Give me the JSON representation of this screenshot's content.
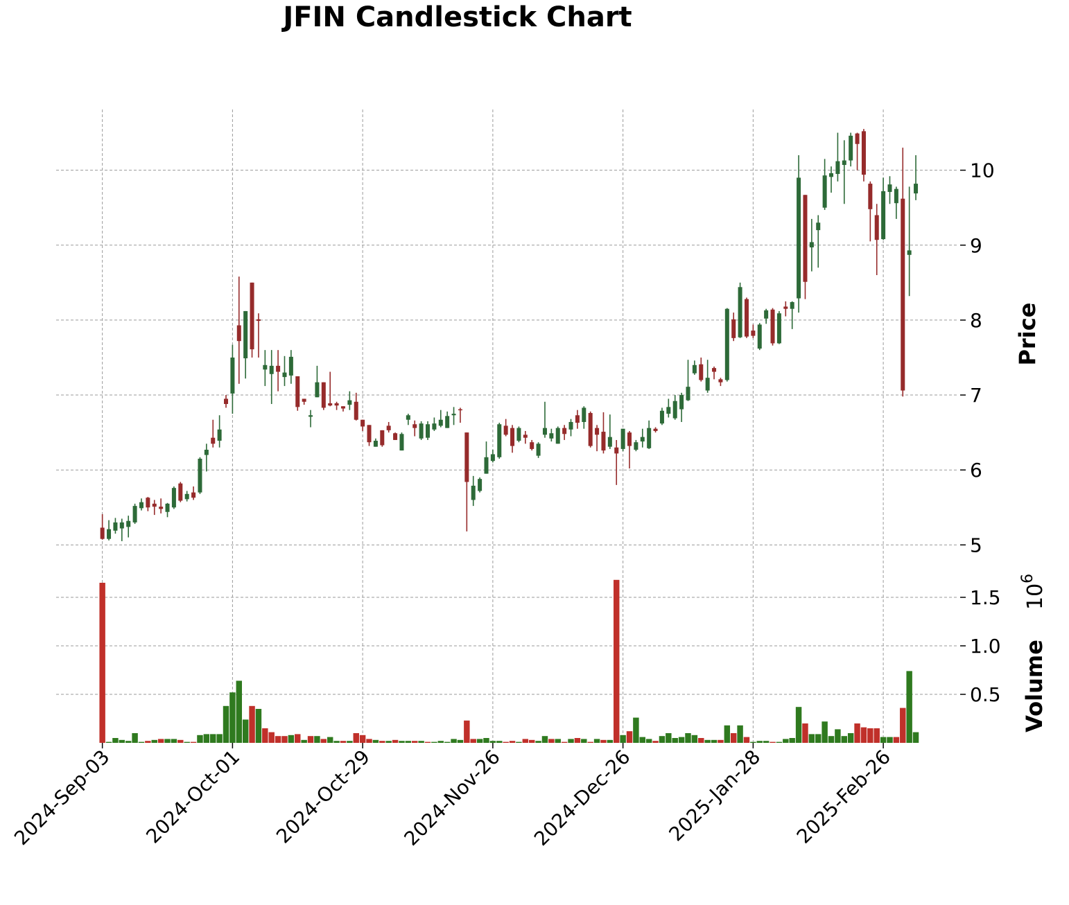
{
  "chart_data": {
    "type": "candlestick",
    "title": "JFIN Candlestick Chart",
    "y_label": "Price",
    "volume_label": "Volume",
    "volume_offset": {
      "base": "10",
      "exponent": "6"
    },
    "grid": true,
    "up_color": "#2d6a38",
    "down_color": "#962b2b",
    "volume_up_color": "#2f7a1f",
    "volume_down_color": "#c0302a",
    "ylim": [
      4.92,
      10.81
    ],
    "yticks": [
      5,
      6,
      7,
      8,
      9,
      10
    ],
    "volume_ylim": [
      0,
      1.85
    ],
    "volume_yticks": [
      0.5,
      {
        "value": 1,
        "label": "1.0"
      },
      1.5
    ],
    "categories": [
      "2024-Sep-03",
      null,
      null,
      null,
      null,
      null,
      null,
      null,
      null,
      null,
      null,
      null,
      null,
      null,
      null,
      null,
      null,
      null,
      null,
      null,
      "2024-Oct-01",
      null,
      null,
      null,
      null,
      null,
      null,
      null,
      null,
      null,
      null,
      null,
      null,
      null,
      null,
      null,
      null,
      null,
      null,
      null,
      "2024-Oct-29",
      null,
      null,
      null,
      null,
      null,
      null,
      null,
      null,
      null,
      null,
      null,
      null,
      null,
      null,
      null,
      null,
      null,
      null,
      null,
      "2024-Nov-26",
      null,
      null,
      null,
      null,
      null,
      null,
      null,
      null,
      null,
      null,
      null,
      null,
      null,
      null,
      null,
      null,
      null,
      null,
      null,
      "2024-Dec-26",
      null,
      null,
      null,
      null,
      null,
      null,
      null,
      null,
      null,
      null,
      null,
      null,
      null,
      null,
      null,
      null,
      null,
      null,
      null,
      "2025-Jan-28",
      null,
      null,
      null,
      null,
      null,
      null,
      null,
      null,
      null,
      null,
      null,
      null,
      null,
      null,
      null,
      null,
      null,
      null,
      null,
      "2025-Feb-26",
      null,
      null,
      null,
      null,
      null
    ],
    "open": [
      5.23,
      5.08,
      5.19,
      5.22,
      5.24,
      5.3,
      5.49,
      5.63,
      5.55,
      5.51,
      5.44,
      5.5,
      5.82,
      5.61,
      5.7,
      5.7,
      6.2,
      6.43,
      6.39,
      6.95,
      7.02,
      7.93,
      7.49,
      8.5,
      8.01,
      7.34,
      7.28,
      7.39,
      7.24,
      7.26,
      7.25,
      6.95,
      6.71,
      6.97,
      7.17,
      6.89,
      6.89,
      6.85,
      6.87,
      6.91,
      6.67,
      6.6,
      6.31,
      6.53,
      6.59,
      6.49,
      6.26,
      6.67,
      6.61,
      6.42,
      6.43,
      6.54,
      6.59,
      6.56,
      6.73,
      6.81,
      6.5,
      5.6,
      5.72,
      5.95,
      6.12,
      6.17,
      6.59,
      6.56,
      6.39,
      6.47,
      6.37,
      6.19,
      6.47,
      6.42,
      6.35,
      6.56,
      6.54,
      6.73,
      6.64,
      6.76,
      6.56,
      6.51,
      6.31,
      6.3,
      6.28,
      6.5,
      6.27,
      6.38,
      6.29,
      6.55,
      6.62,
      6.75,
      6.69,
      6.81,
      6.93,
      7.29,
      7.41,
      7.06,
      7.36,
      7.21,
      7.2,
      8.01,
      7.77,
      8.28,
      7.86,
      7.62,
      8.02,
      8.14,
      7.69,
      8.18,
      8.15,
      8.29,
      9.67,
      8.97,
      9.2,
      9.5,
      9.91,
      9.95,
      10.07,
      10.13,
      10.49,
      10.52,
      9.82,
      9.4,
      9.08,
      9.71,
      9.56,
      9.62,
      8.87,
      9.69
    ],
    "high": [
      5.41,
      5.33,
      5.36,
      5.35,
      5.39,
      5.55,
      5.62,
      5.64,
      5.6,
      5.62,
      5.56,
      5.78,
      5.84,
      5.72,
      5.78,
      6.17,
      6.35,
      6.67,
      6.73,
      7.0,
      7.67,
      8.58,
      8.12,
      8.5,
      8.09,
      7.6,
      7.6,
      7.6,
      7.52,
      7.6,
      7.25,
      6.95,
      6.8,
      7.39,
      7.17,
      7.31,
      6.91,
      6.85,
      7.05,
      7.03,
      6.67,
      6.6,
      6.42,
      6.53,
      6.64,
      6.5,
      6.5,
      6.75,
      6.66,
      6.65,
      6.65,
      6.7,
      6.8,
      6.78,
      6.84,
      6.83,
      6.5,
      5.92,
      5.9,
      6.38,
      6.27,
      6.63,
      6.68,
      6.6,
      6.58,
      6.52,
      6.4,
      6.37,
      6.91,
      6.55,
      6.58,
      6.6,
      6.68,
      6.8,
      6.85,
      6.78,
      6.6,
      6.77,
      6.74,
      6.4,
      6.55,
      6.52,
      6.4,
      6.55,
      6.66,
      6.57,
      6.83,
      6.95,
      7.0,
      7.03,
      7.47,
      7.46,
      7.5,
      7.47,
      7.38,
      7.23,
      8.16,
      8.1,
      8.5,
      8.3,
      7.94,
      7.96,
      8.15,
      8.16,
      8.12,
      8.25,
      8.25,
      10.2,
      9.67,
      9.35,
      9.4,
      10.15,
      10.05,
      10.5,
      10.4,
      10.5,
      10.5,
      10.55,
      9.85,
      9.55,
      9.9,
      9.92,
      9.78,
      10.3,
      9.78,
      10.2
    ],
    "low": [
      5.07,
      5.06,
      5.15,
      5.05,
      5.1,
      5.28,
      5.46,
      5.45,
      5.4,
      5.42,
      5.37,
      5.48,
      5.57,
      5.58,
      5.6,
      5.68,
      5.98,
      6.3,
      6.3,
      6.83,
      6.75,
      7.15,
      7.22,
      7.5,
      7.5,
      7.12,
      6.88,
      7.05,
      7.12,
      7.15,
      6.79,
      6.87,
      6.57,
      6.97,
      6.8,
      6.85,
      6.8,
      6.78,
      6.8,
      6.66,
      6.52,
      6.32,
      6.31,
      6.31,
      6.5,
      6.4,
      6.26,
      6.6,
      6.45,
      6.4,
      6.4,
      6.52,
      6.57,
      6.56,
      6.6,
      6.63,
      5.18,
      5.52,
      5.7,
      5.95,
      6.1,
      6.15,
      6.45,
      6.23,
      6.37,
      6.35,
      6.26,
      6.16,
      6.43,
      6.38,
      6.35,
      6.4,
      6.45,
      6.55,
      6.55,
      6.3,
      6.25,
      6.22,
      6.28,
      5.8,
      6.25,
      6.02,
      6.25,
      6.3,
      6.28,
      6.5,
      6.6,
      6.7,
      6.67,
      6.64,
      6.92,
      7.27,
      7.18,
      7.03,
      7.21,
      7.12,
      7.18,
      7.72,
      7.76,
      7.76,
      7.76,
      7.6,
      7.95,
      7.66,
      7.68,
      8.05,
      7.88,
      8.1,
      8.28,
      8.65,
      8.7,
      9.47,
      9.7,
      9.85,
      9.55,
      10.05,
      10.0,
      9.85,
      9.05,
      8.6,
      9.07,
      9.55,
      9.35,
      6.98,
      8.32,
      9.6
    ],
    "close": [
      5.08,
      5.21,
      5.3,
      5.3,
      5.32,
      5.52,
      5.57,
      5.5,
      5.51,
      5.48,
      5.55,
      5.76,
      5.59,
      5.68,
      5.63,
      6.15,
      6.27,
      6.35,
      6.54,
      6.88,
      7.5,
      7.72,
      8.12,
      7.61,
      7.99,
      7.4,
      7.39,
      7.31,
      7.3,
      7.51,
      6.84,
      6.91,
      6.73,
      7.17,
      6.83,
      6.86,
      6.86,
      6.82,
      6.93,
      6.67,
      6.58,
      6.37,
      6.39,
      6.33,
      6.53,
      6.4,
      6.48,
      6.73,
      6.56,
      6.62,
      6.61,
      6.62,
      6.67,
      6.72,
      6.75,
      6.8,
      5.84,
      5.79,
      5.88,
      6.17,
      6.21,
      6.61,
      6.47,
      6.32,
      6.56,
      6.43,
      6.28,
      6.35,
      6.56,
      6.49,
      6.56,
      6.48,
      6.64,
      6.63,
      6.83,
      6.32,
      6.47,
      6.26,
      6.44,
      6.22,
      6.55,
      6.32,
      6.37,
      6.44,
      6.56,
      6.52,
      6.79,
      6.84,
      6.92,
      7.0,
      7.11,
      7.4,
      7.2,
      7.23,
      7.31,
      7.17,
      8.15,
      7.76,
      8.44,
      7.78,
      7.79,
      7.94,
      8.13,
      7.69,
      8.09,
      8.15,
      8.24,
      9.9,
      8.51,
      9.04,
      9.3,
      9.93,
      9.96,
      10.12,
      10.13,
      10.46,
      10.35,
      9.94,
      9.48,
      9.07,
      9.72,
      9.81,
      9.75,
      7.06,
      8.93,
      9.82
    ],
    "volume": [
      1.65,
      0.01,
      0.05,
      0.03,
      0.02,
      0.1,
      0.01,
      0.02,
      0.03,
      0.04,
      0.04,
      0.04,
      0.03,
      0.01,
      0.01,
      0.08,
      0.09,
      0.09,
      0.09,
      0.38,
      0.52,
      0.64,
      0.24,
      0.38,
      0.35,
      0.15,
      0.11,
      0.07,
      0.07,
      0.08,
      0.09,
      0.03,
      0.07,
      0.07,
      0.04,
      0.06,
      0.02,
      0.02,
      0.02,
      0.1,
      0.08,
      0.04,
      0.03,
      0.02,
      0.02,
      0.03,
      0.02,
      0.02,
      0.02,
      0.02,
      0.01,
      0.01,
      0.02,
      0.01,
      0.04,
      0.03,
      0.23,
      0.04,
      0.04,
      0.05,
      0.02,
      0.02,
      0.01,
      0.02,
      0.01,
      0.04,
      0.03,
      0.02,
      0.07,
      0.04,
      0.04,
      0.01,
      0.04,
      0.05,
      0.04,
      0.01,
      0.04,
      0.03,
      0.03,
      1.68,
      0.08,
      0.12,
      0.26,
      0.06,
      0.04,
      0.02,
      0.07,
      0.1,
      0.05,
      0.06,
      0.1,
      0.08,
      0.05,
      0.03,
      0.03,
      0.03,
      0.18,
      0.1,
      0.18,
      0.06,
      0.01,
      0.02,
      0.02,
      0.01,
      0.01,
      0.04,
      0.05,
      0.37,
      0.2,
      0.09,
      0.09,
      0.22,
      0.07,
      0.14,
      0.07,
      0.1,
      0.2,
      0.16,
      0.15,
      0.15,
      0.06,
      0.06,
      0.06,
      0.36,
      0.74,
      0.11
    ]
  }
}
